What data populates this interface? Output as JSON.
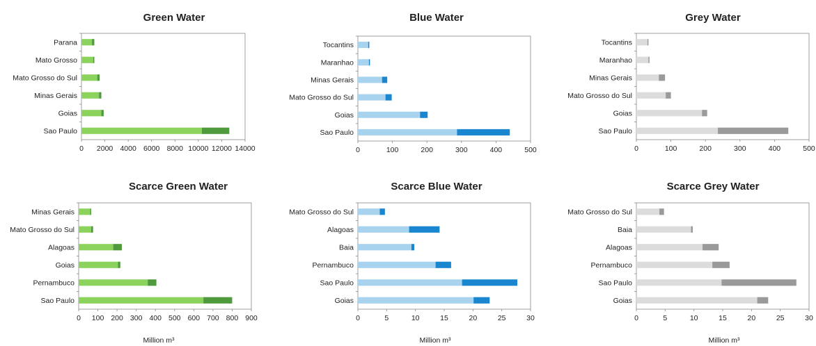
{
  "chart_data": [
    {
      "type": "bar",
      "orientation": "horizontal",
      "stacked": true,
      "title": "Green Water",
      "xlabel": "",
      "categories": [
        "Parana",
        "Mato Grosso",
        "Mato Grosso do Sul",
        "Minas Gerais",
        "Goias",
        "Sao Paulo"
      ],
      "xlim": [
        0,
        14000
      ],
      "xticks": [
        "0",
        "2000",
        "4000",
        "6000",
        "8000",
        "10000",
        "12000",
        "14000"
      ],
      "colors": [
        "#8bd35c",
        "#4e9a3c"
      ],
      "series": [
        {
          "values": [
            900,
            1000,
            1350,
            1500,
            1700,
            10300
          ]
        },
        {
          "values": [
            200,
            100,
            200,
            200,
            200,
            2350
          ]
        }
      ]
    },
    {
      "type": "bar",
      "orientation": "horizontal",
      "stacked": true,
      "title": "Blue Water",
      "xlabel": "",
      "categories": [
        "Tocantins",
        "Maranhao",
        "Minas Gerais",
        "Mato Grosso do Sul",
        "Goias",
        "Sao Paulo"
      ],
      "xlim": [
        0,
        500
      ],
      "xticks": [
        "0",
        "100",
        "200",
        "300",
        "400",
        "500"
      ],
      "colors": [
        "#a8d3ef",
        "#1a86d0"
      ],
      "series": [
        {
          "values": [
            30,
            32,
            70,
            80,
            180,
            287
          ]
        },
        {
          "values": [
            3,
            3,
            15,
            18,
            22,
            153
          ]
        }
      ]
    },
    {
      "type": "bar",
      "orientation": "horizontal",
      "stacked": true,
      "title": "Grey Water",
      "xlabel": "",
      "categories": [
        "Tocantins",
        "Maranhao",
        "Minas Gerais",
        "Mato Grosso do Sul",
        "Goias",
        "Sao Paulo"
      ],
      "xlim": [
        0,
        500
      ],
      "xticks": [
        "0",
        "100",
        "200",
        "300",
        "400",
        "500"
      ],
      "colors": [
        "#dcdcdc",
        "#9a9a9a"
      ],
      "series": [
        {
          "values": [
            32,
            35,
            65,
            85,
            190,
            236
          ]
        },
        {
          "values": [
            3,
            3,
            18,
            15,
            15,
            204
          ]
        }
      ]
    },
    {
      "type": "bar",
      "orientation": "horizontal",
      "stacked": true,
      "title": "Scarce Green Water",
      "xlabel": "Million m³",
      "categories": [
        "Minas Gerais",
        "Mato Grosso do Sul",
        "Alagoas",
        "Goias",
        "Pernambuco",
        "Sao Paulo"
      ],
      "xlim": [
        0,
        900
      ],
      "xticks": [
        "0",
        "100",
        "200",
        "300",
        "400",
        "500",
        "600",
        "700",
        "800",
        "900"
      ],
      "colors": [
        "#8bd35c",
        "#4e9a3c"
      ],
      "series": [
        {
          "values": [
            60,
            65,
            180,
            205,
            360,
            650
          ]
        },
        {
          "values": [
            5,
            10,
            45,
            12,
            45,
            150
          ]
        }
      ]
    },
    {
      "type": "bar",
      "orientation": "horizontal",
      "stacked": true,
      "title": "Scarce Blue Water",
      "xlabel": "Million m³",
      "categories": [
        "Mato Grosso do Sul",
        "Alagoas",
        "Baia",
        "Pernambuco",
        "Sao Paulo",
        "Goias"
      ],
      "xlim": [
        0,
        30
      ],
      "xticks": [
        "0",
        "5",
        "10",
        "15",
        "20",
        "25",
        "30"
      ],
      "colors": [
        "#a8d3ef",
        "#1a86d0"
      ],
      "series": [
        {
          "values": [
            3.8,
            8.9,
            9.3,
            13.5,
            18.1,
            20.1
          ]
        },
        {
          "values": [
            0.9,
            5.3,
            0.5,
            2.7,
            9.6,
            2.8
          ]
        }
      ]
    },
    {
      "type": "bar",
      "orientation": "horizontal",
      "stacked": true,
      "title": "Scarce Grey Water",
      "xlabel": "Million m³",
      "categories": [
        "Mato Grosso do Sul",
        "Baia",
        "Alagoas",
        "Pernambuco",
        "Sao Paulo",
        "Goias"
      ],
      "xlim": [
        0,
        30
      ],
      "xticks": [
        "0",
        "5",
        "10",
        "15",
        "20",
        "25",
        "30"
      ],
      "colors": [
        "#dcdcdc",
        "#9a9a9a"
      ],
      "series": [
        {
          "values": [
            4.0,
            9.5,
            11.5,
            13.2,
            14.8,
            21.0
          ]
        },
        {
          "values": [
            0.8,
            0.3,
            2.8,
            3.0,
            13.0,
            1.9
          ]
        }
      ]
    }
  ]
}
